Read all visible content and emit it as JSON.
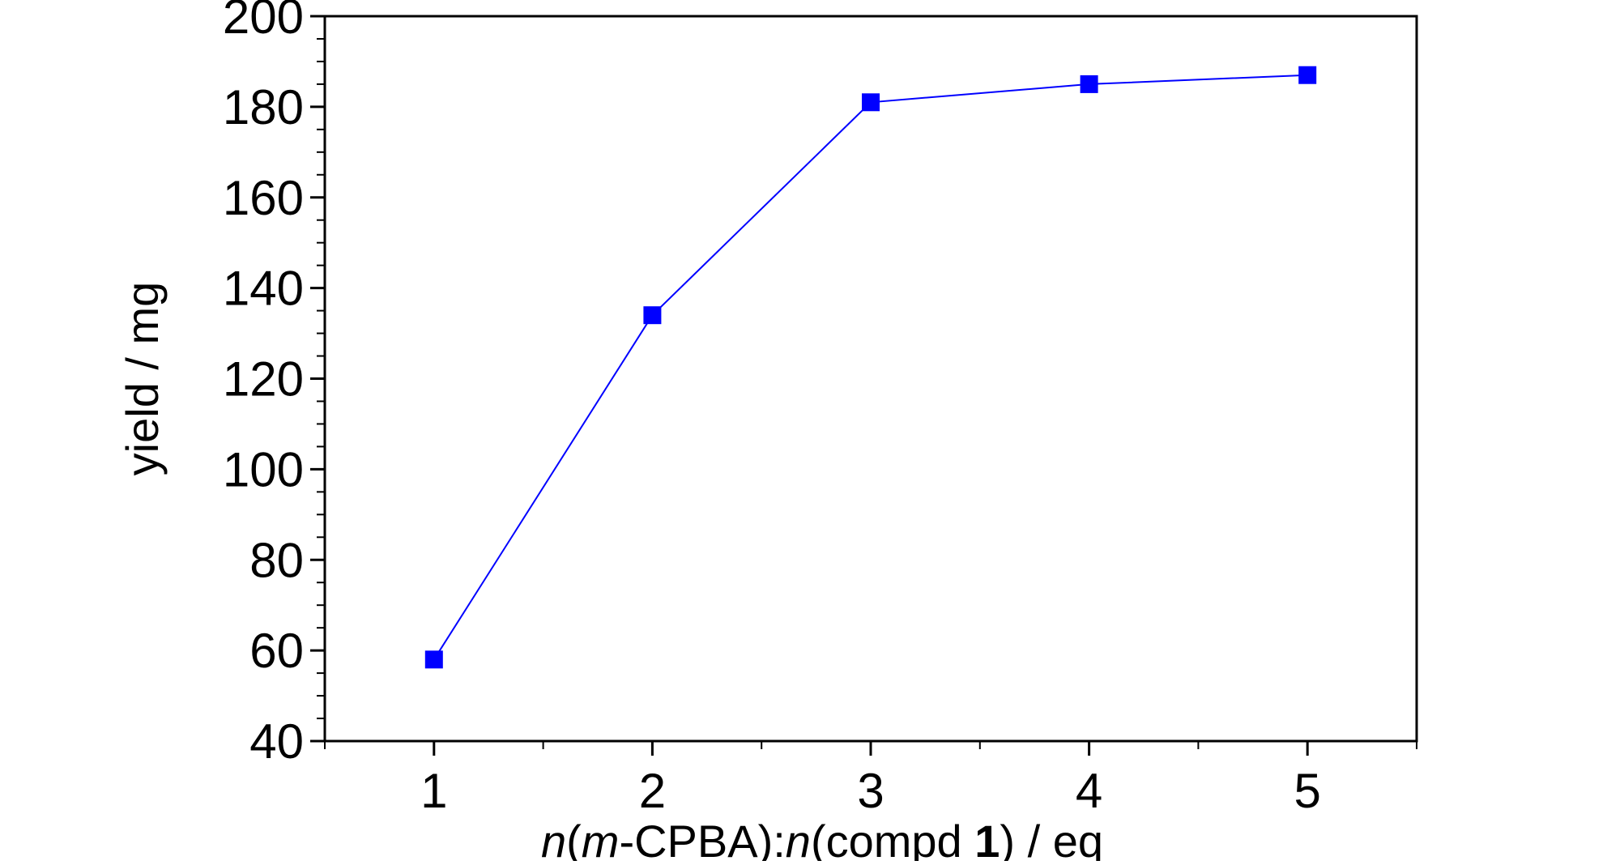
{
  "chart_data": {
    "type": "line",
    "title": "",
    "xlabel": {
      "parts": [
        {
          "text": "n",
          "style": "italic"
        },
        {
          "text": "(",
          "style": "normal"
        },
        {
          "text": "m",
          "style": "italic"
        },
        {
          "text": "-CPBA):",
          "style": "normal"
        },
        {
          "text": "n",
          "style": "italic"
        },
        {
          "text": "(compd ",
          "style": "normal"
        },
        {
          "text": "1",
          "style": "bold"
        },
        {
          "text": ") / eq",
          "style": "normal"
        }
      ]
    },
    "ylabel": "yield / mg",
    "xlim": [
      0.5,
      5.5
    ],
    "ylim": [
      40,
      200
    ],
    "x_ticks": [
      "1",
      "2",
      "3",
      "4",
      "5"
    ],
    "y_ticks": [
      "40",
      "60",
      "80",
      "100",
      "120",
      "140",
      "160",
      "180",
      "200"
    ],
    "grid": false,
    "legend": "none",
    "series": [
      {
        "color": "#0000ff",
        "marker": "square",
        "x": [
          1,
          2,
          3,
          4,
          5
        ],
        "y": [
          58,
          134,
          181,
          185,
          187
        ]
      }
    ]
  }
}
